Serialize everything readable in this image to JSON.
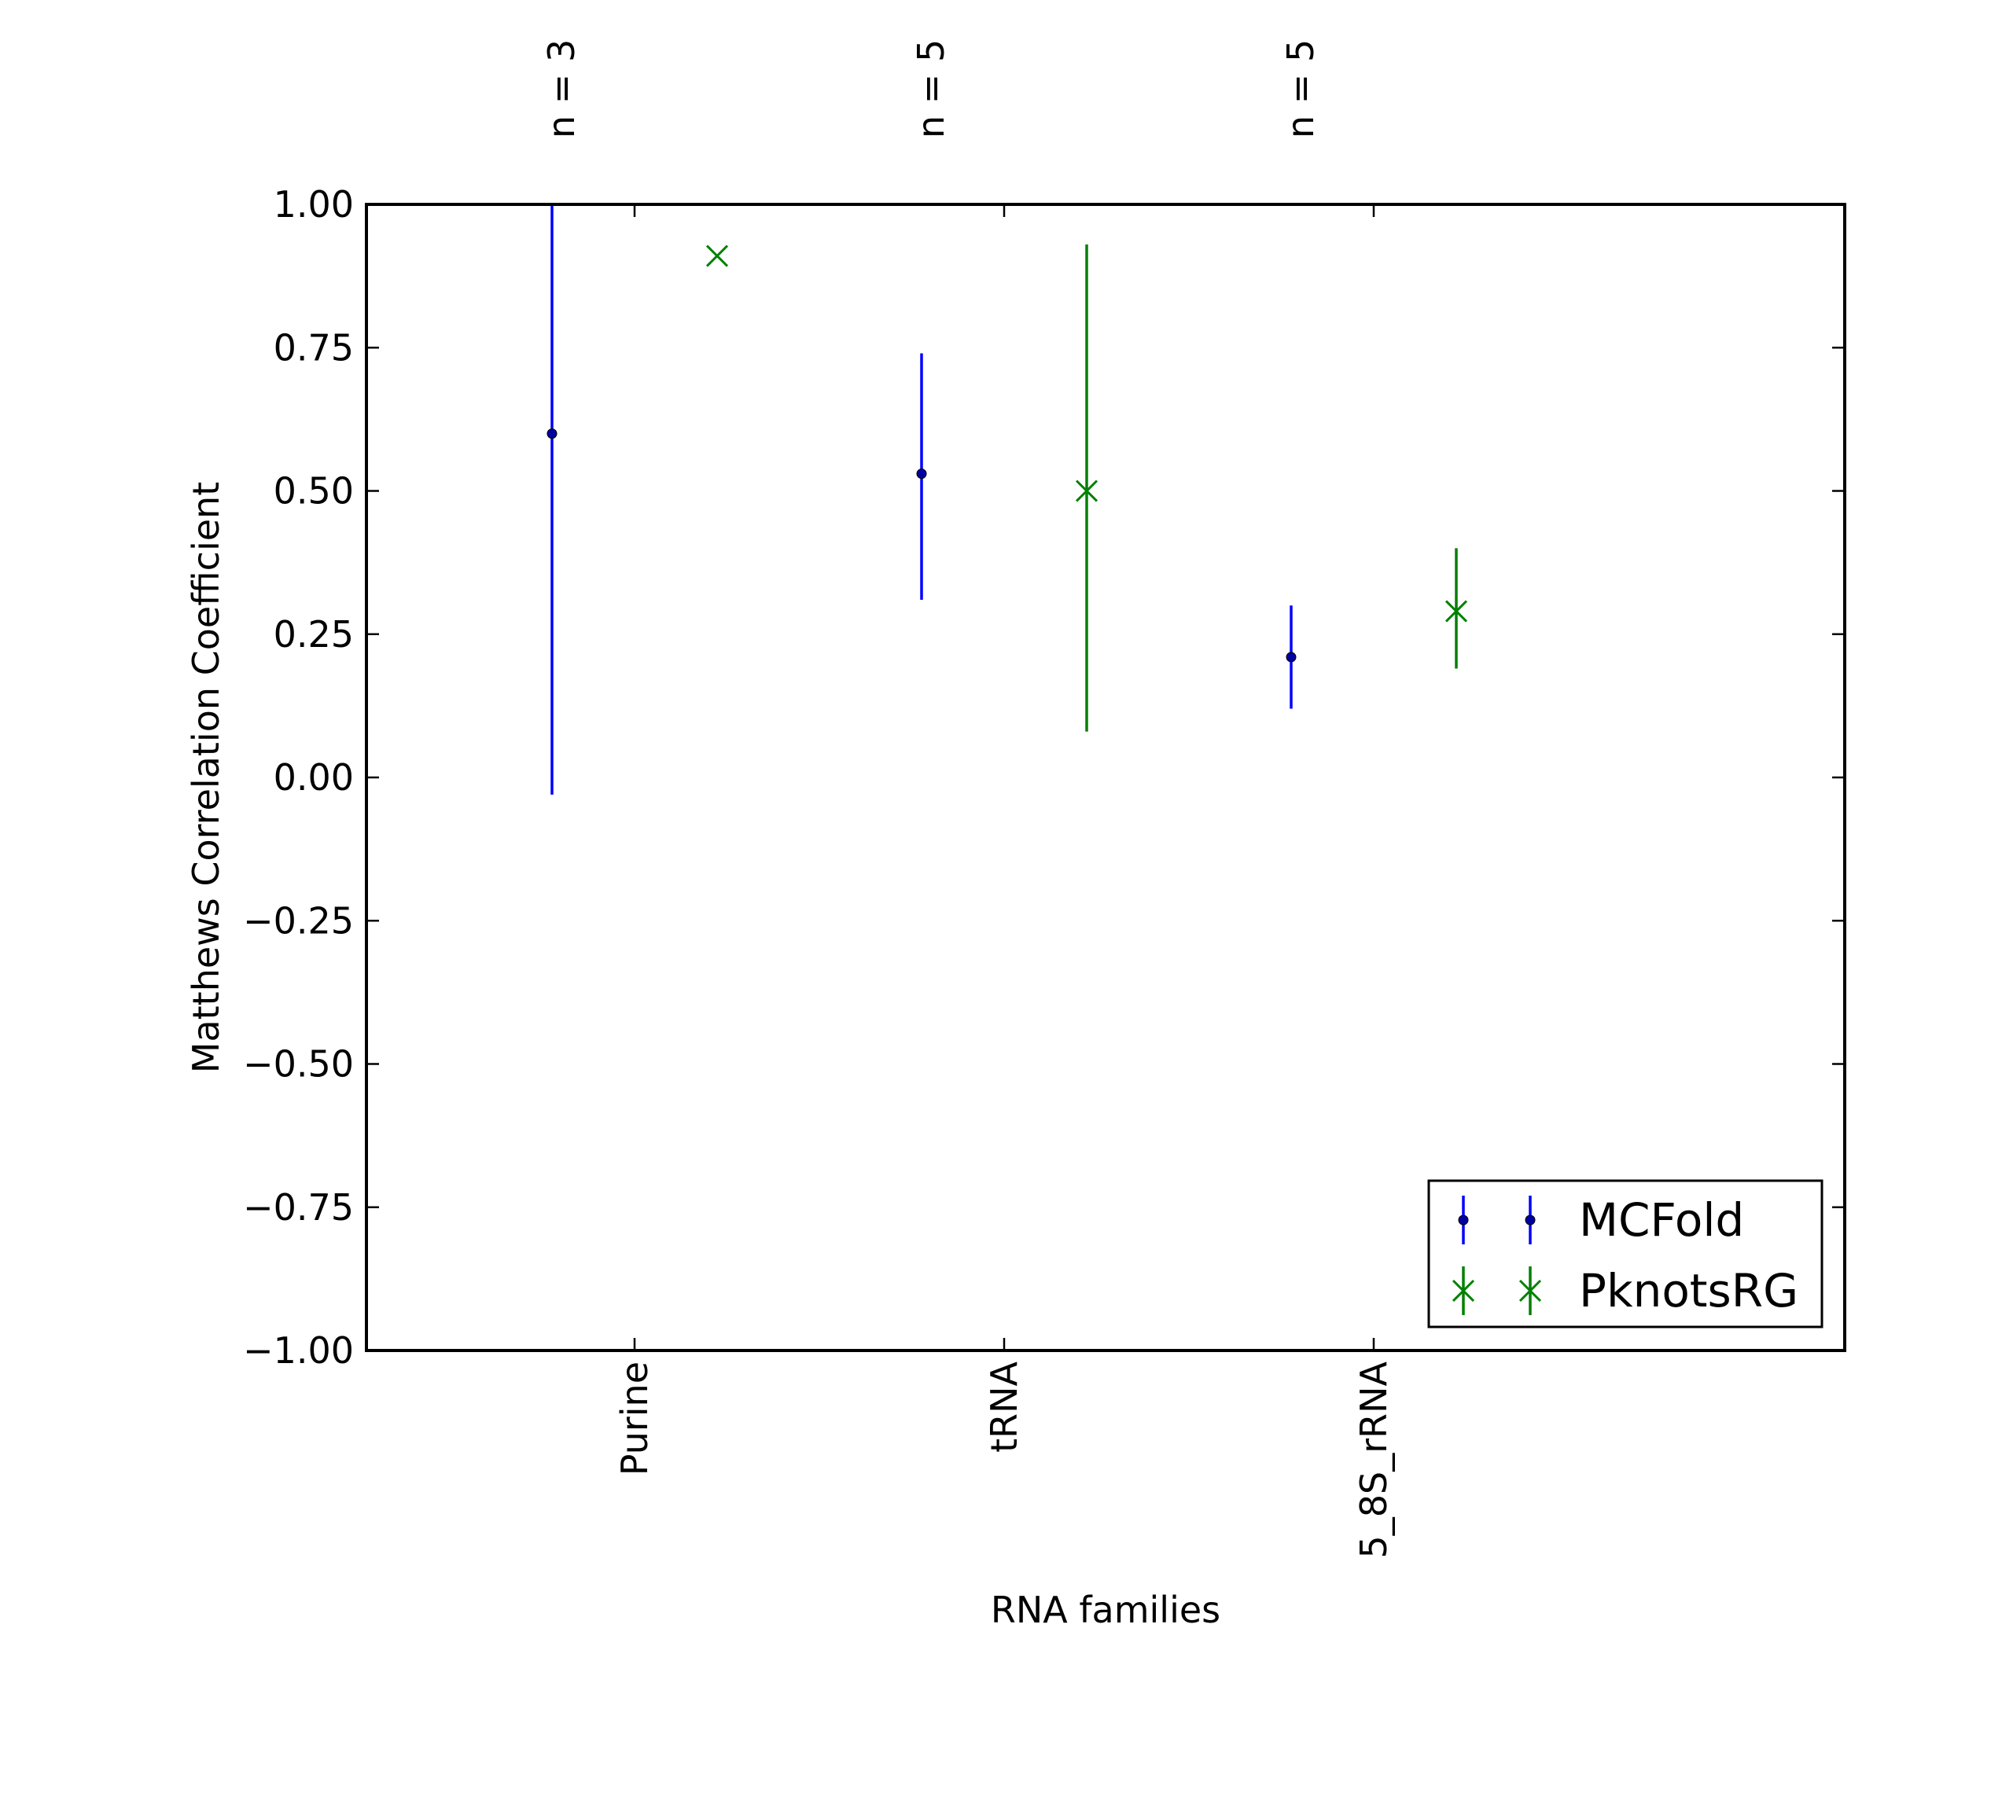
{
  "chart_data": {
    "type": "scatter",
    "subtype": "errorbar",
    "title": "",
    "xlabel": "RNA families",
    "ylabel": "Matthews Correlation Coefficient",
    "ylim": [
      -1.0,
      1.0
    ],
    "y_ticks": [
      "1.00",
      "0.75",
      "0.50",
      "0.25",
      "0.00",
      "−0.25",
      "−0.50",
      "−0.75",
      "−1.00"
    ],
    "y_tick_values": [
      1.0,
      0.75,
      0.5,
      0.25,
      0.0,
      -0.25,
      -0.5,
      -0.75,
      -1.0
    ],
    "categories": [
      "Purine",
      "tRNA",
      "5_8S_rRNA"
    ],
    "category_counts": [
      "n = 3",
      "n = 5",
      "n = 5"
    ],
    "grid": false,
    "legend_position": "lower-right",
    "series": [
      {
        "name": "MCFold",
        "color": "#0000ff",
        "marker": "dot",
        "points": [
          {
            "category": "Purine",
            "y": 0.6,
            "low": -0.03,
            "high": 1.0
          },
          {
            "category": "tRNA",
            "y": 0.53,
            "low": 0.31,
            "high": 0.74
          },
          {
            "category": "5_8S_rRNA",
            "y": 0.21,
            "low": 0.12,
            "high": 0.3
          }
        ]
      },
      {
        "name": "PknotsRG",
        "color": "#008000",
        "marker": "x",
        "points": [
          {
            "category": "Purine",
            "y": 0.91,
            "low": 0.91,
            "high": 0.91
          },
          {
            "category": "tRNA",
            "y": 0.5,
            "low": 0.08,
            "high": 0.93
          },
          {
            "category": "5_8S_rRNA",
            "y": 0.29,
            "low": 0.19,
            "high": 0.4
          }
        ]
      }
    ]
  }
}
